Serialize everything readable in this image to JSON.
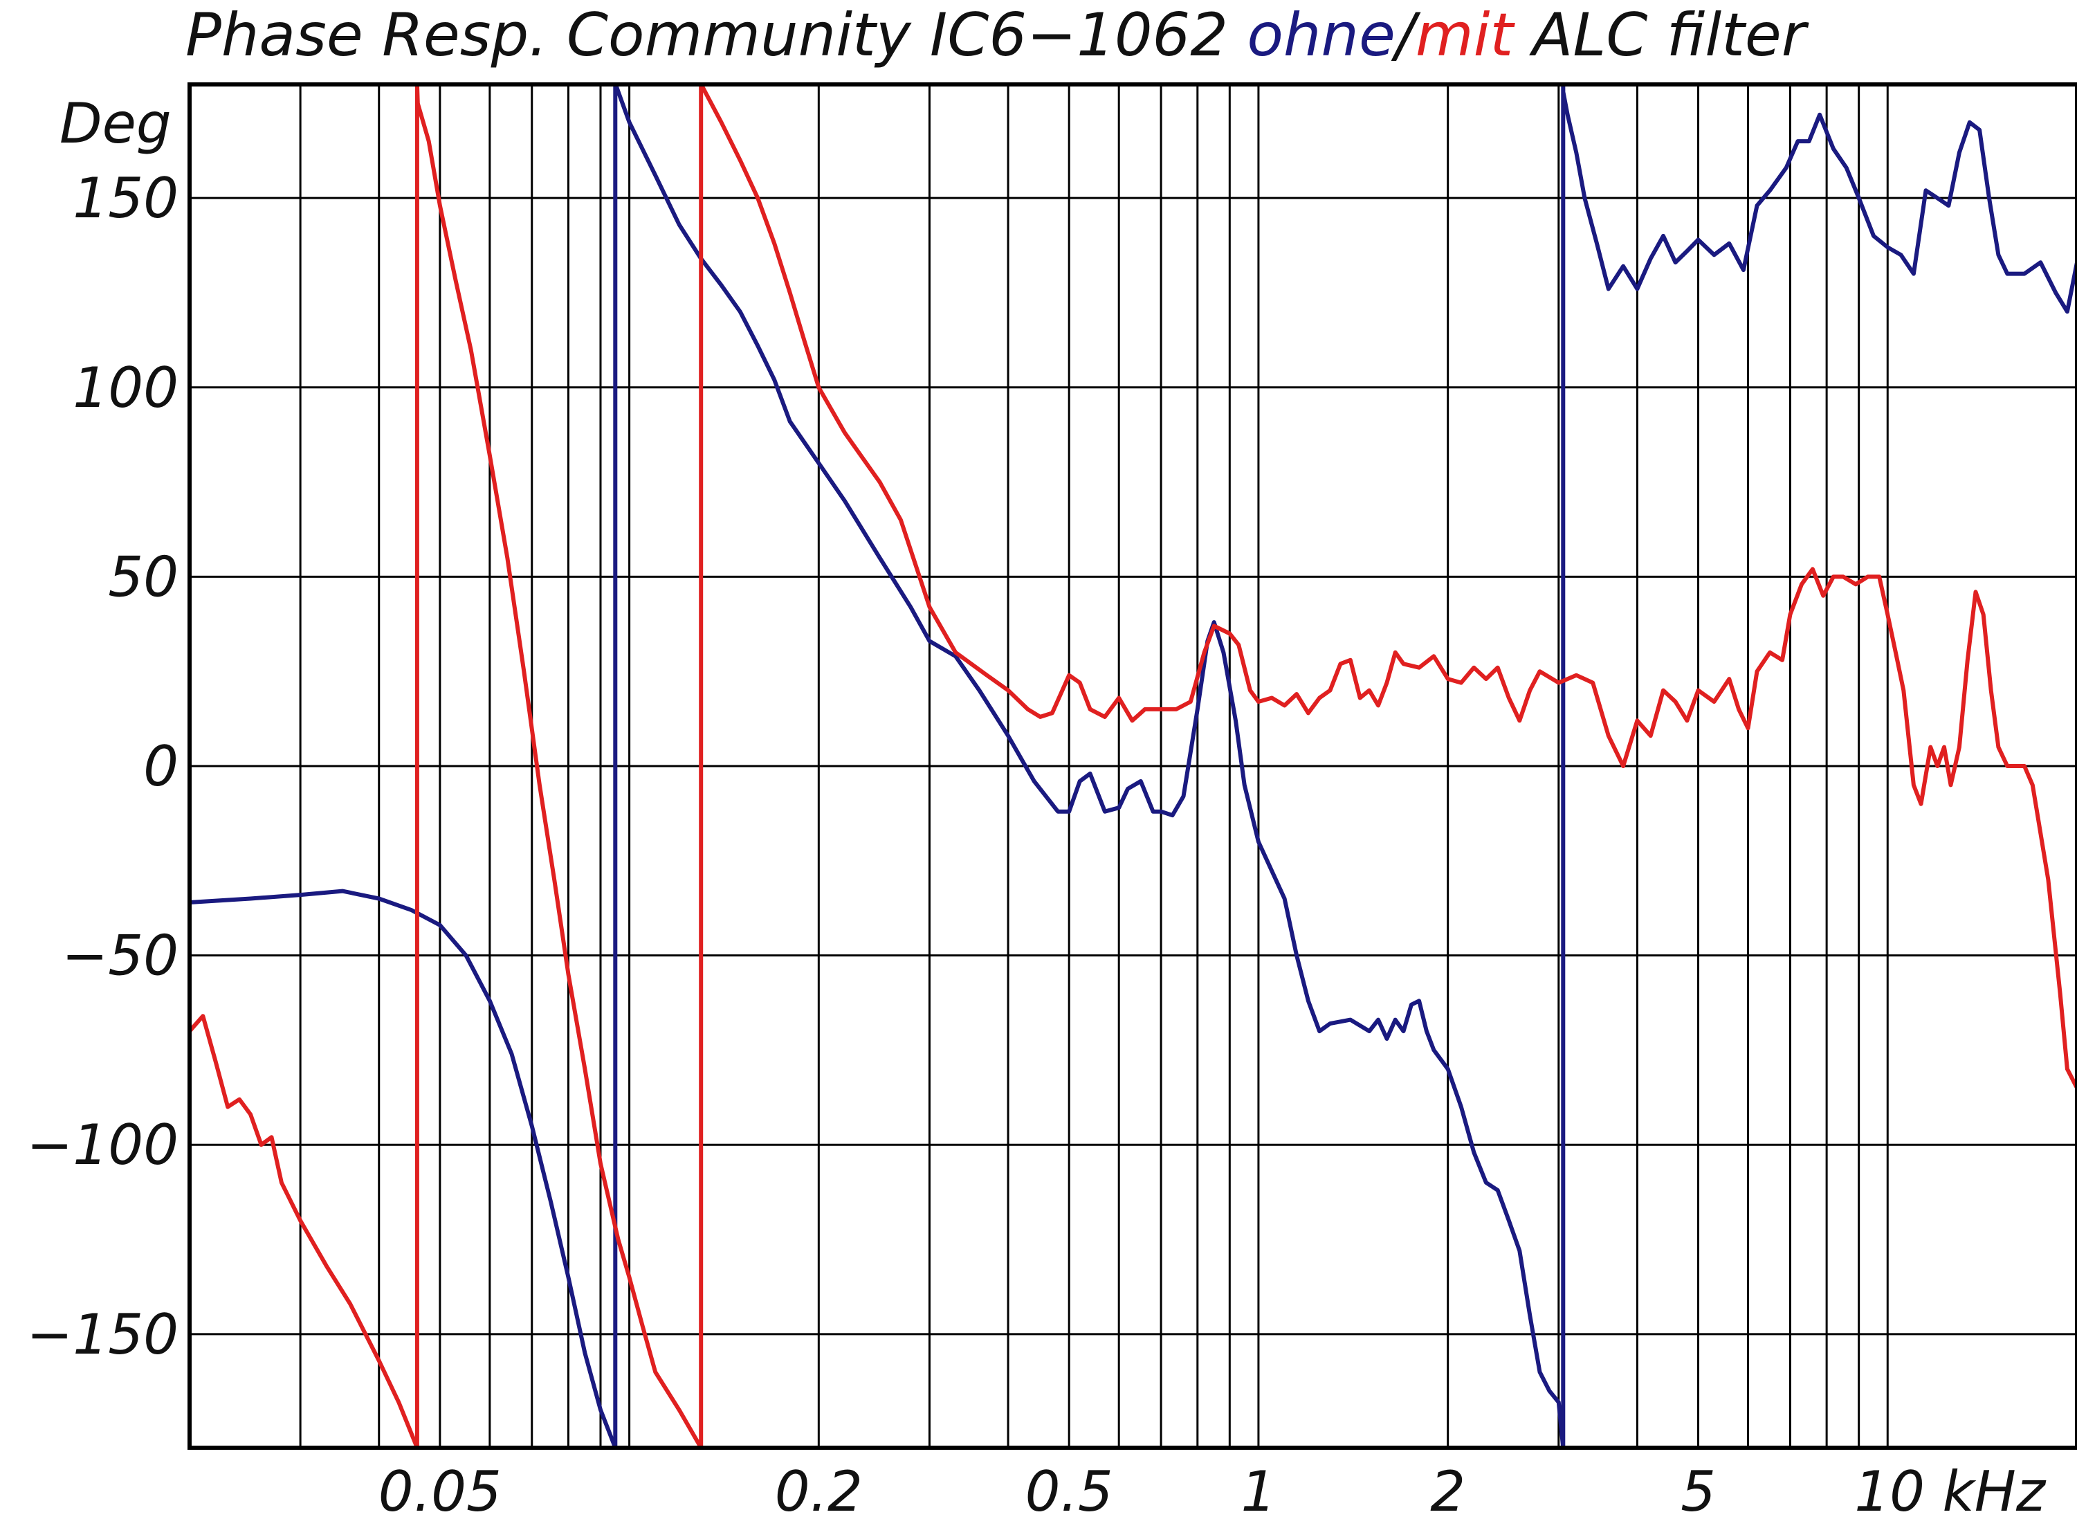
{
  "chart_data": {
    "type": "line",
    "title_parts": [
      {
        "text": "Phase Resp. Community IC6−1062 ",
        "color": "#111111"
      },
      {
        "text": "ohne",
        "color": "#1a1a80"
      },
      {
        "text": "/",
        "color": "#111111"
      },
      {
        "text": "mit",
        "color": "#e02020"
      },
      {
        "text": " ALC filter",
        "color": "#111111"
      }
    ],
    "ylabel": "Deg",
    "xlabel": "kHz",
    "x_scale": "log",
    "x_unit": "kHz",
    "xlim": [
      0.02,
      20
    ],
    "ylim": [
      -180,
      180
    ],
    "grid": true,
    "y_ticks": [
      {
        "value": 150,
        "label": "150"
      },
      {
        "value": 100,
        "label": "100"
      },
      {
        "value": 50,
        "label": "50"
      },
      {
        "value": 0,
        "label": "0"
      },
      {
        "value": -50,
        "label": "−50"
      },
      {
        "value": -100,
        "label": "−100"
      },
      {
        "value": -150,
        "label": "−150"
      }
    ],
    "x_tick_labels": [
      {
        "value": 0.05,
        "label": "0.05"
      },
      {
        "value": 0.2,
        "label": "0.2"
      },
      {
        "value": 0.5,
        "label": "0.5"
      },
      {
        "value": 1,
        "label": "1"
      },
      {
        "value": 2,
        "label": "2"
      },
      {
        "value": 5,
        "label": "5"
      },
      {
        "value": 10,
        "label": "10 kHz"
      }
    ],
    "x_gridlines": [
      0.03,
      0.04,
      0.05,
      0.06,
      0.07,
      0.08,
      0.09,
      0.1,
      0.2,
      0.3,
      0.4,
      0.5,
      0.6,
      0.7,
      0.8,
      0.9,
      1,
      2,
      3,
      4,
      5,
      6,
      7,
      8,
      9,
      10,
      20
    ],
    "y_gridlines": [
      150,
      100,
      50,
      0,
      -50,
      -100,
      -150
    ],
    "series": [
      {
        "name": "ohne",
        "color": "#1a1a80",
        "points": [
          [
            0.02,
            -36
          ],
          [
            0.025,
            -35
          ],
          [
            0.03,
            -34
          ],
          [
            0.035,
            -33
          ],
          [
            0.04,
            -35
          ],
          [
            0.045,
            -38
          ],
          [
            0.05,
            -42
          ],
          [
            0.055,
            -50
          ],
          [
            0.06,
            -62
          ],
          [
            0.065,
            -76
          ],
          [
            0.07,
            -95
          ],
          [
            0.075,
            -115
          ],
          [
            0.08,
            -135
          ],
          [
            0.085,
            -155
          ],
          [
            0.09,
            -170
          ],
          [
            0.095,
            -180
          ],
          [
            0.0951,
            180
          ],
          [
            0.1,
            170
          ],
          [
            0.11,
            156
          ],
          [
            0.12,
            143
          ],
          [
            0.13,
            134
          ],
          [
            0.14,
            127
          ],
          [
            0.15,
            120
          ],
          [
            0.16,
            111
          ],
          [
            0.17,
            102
          ],
          [
            0.18,
            91
          ],
          [
            0.2,
            80
          ],
          [
            0.22,
            70
          ],
          [
            0.25,
            55
          ],
          [
            0.28,
            42
          ],
          [
            0.3,
            33
          ],
          [
            0.33,
            29
          ],
          [
            0.36,
            20
          ],
          [
            0.4,
            8
          ],
          [
            0.44,
            -4
          ],
          [
            0.48,
            -12
          ],
          [
            0.5,
            -12
          ],
          [
            0.52,
            -4
          ],
          [
            0.54,
            -2
          ],
          [
            0.57,
            -12
          ],
          [
            0.6,
            -11
          ],
          [
            0.62,
            -6
          ],
          [
            0.65,
            -4
          ],
          [
            0.68,
            -12
          ],
          [
            0.7,
            -12
          ],
          [
            0.73,
            -13
          ],
          [
            0.76,
            -8
          ],
          [
            0.8,
            15
          ],
          [
            0.83,
            33
          ],
          [
            0.85,
            38
          ],
          [
            0.88,
            30
          ],
          [
            0.92,
            12
          ],
          [
            0.95,
            -5
          ],
          [
            1.0,
            -20
          ],
          [
            1.1,
            -35
          ],
          [
            1.15,
            -50
          ],
          [
            1.2,
            -62
          ],
          [
            1.25,
            -70
          ],
          [
            1.3,
            -68
          ],
          [
            1.4,
            -67
          ],
          [
            1.5,
            -70
          ],
          [
            1.55,
            -67
          ],
          [
            1.6,
            -72
          ],
          [
            1.65,
            -67
          ],
          [
            1.7,
            -70
          ],
          [
            1.75,
            -63
          ],
          [
            1.8,
            -62
          ],
          [
            1.85,
            -70
          ],
          [
            1.9,
            -75
          ],
          [
            2.0,
            -80
          ],
          [
            2.1,
            -90
          ],
          [
            2.2,
            -102
          ],
          [
            2.3,
            -110
          ],
          [
            2.4,
            -112
          ],
          [
            2.5,
            -120
          ],
          [
            2.6,
            -128
          ],
          [
            2.7,
            -145
          ],
          [
            2.8,
            -160
          ],
          [
            2.9,
            -165
          ],
          [
            3.0,
            -168
          ],
          [
            3.05,
            -180
          ],
          [
            3.051,
            178
          ],
          [
            3.1,
            172
          ],
          [
            3.2,
            162
          ],
          [
            3.3,
            150
          ],
          [
            3.45,
            138
          ],
          [
            3.6,
            126
          ],
          [
            3.8,
            132
          ],
          [
            4.0,
            126
          ],
          [
            4.2,
            134
          ],
          [
            4.4,
            140
          ],
          [
            4.6,
            133
          ],
          [
            4.8,
            136
          ],
          [
            5.0,
            139
          ],
          [
            5.3,
            135
          ],
          [
            5.6,
            138
          ],
          [
            5.9,
            131
          ],
          [
            6.2,
            148
          ],
          [
            6.5,
            152
          ],
          [
            6.9,
            158
          ],
          [
            7.2,
            165
          ],
          [
            7.5,
            165
          ],
          [
            7.8,
            172
          ],
          [
            8.2,
            163
          ],
          [
            8.6,
            158
          ],
          [
            9.0,
            150
          ],
          [
            9.5,
            140
          ],
          [
            10.0,
            137
          ],
          [
            10.5,
            135
          ],
          [
            11.0,
            130
          ],
          [
            11.5,
            152
          ],
          [
            12.0,
            150
          ],
          [
            12.5,
            148
          ],
          [
            13.0,
            162
          ],
          [
            13.5,
            170
          ],
          [
            14.0,
            168
          ],
          [
            14.5,
            150
          ],
          [
            15.0,
            135
          ],
          [
            15.5,
            130
          ],
          [
            16.5,
            130
          ],
          [
            17.5,
            133
          ],
          [
            18.5,
            125
          ],
          [
            19.3,
            120
          ],
          [
            20.0,
            133
          ]
        ]
      },
      {
        "name": "mit",
        "color": "#e02020",
        "points": [
          [
            0.02,
            -70
          ],
          [
            0.021,
            -66
          ],
          [
            0.022,
            -78
          ],
          [
            0.023,
            -90
          ],
          [
            0.024,
            -88
          ],
          [
            0.025,
            -92
          ],
          [
            0.026,
            -100
          ],
          [
            0.027,
            -98
          ],
          [
            0.028,
            -110
          ],
          [
            0.03,
            -120
          ],
          [
            0.033,
            -132
          ],
          [
            0.036,
            -142
          ],
          [
            0.04,
            -157
          ],
          [
            0.043,
            -168
          ],
          [
            0.046,
            -180
          ],
          [
            0.0461,
            175
          ],
          [
            0.048,
            165
          ],
          [
            0.05,
            148
          ],
          [
            0.053,
            128
          ],
          [
            0.056,
            110
          ],
          [
            0.06,
            82
          ],
          [
            0.064,
            55
          ],
          [
            0.068,
            25
          ],
          [
            0.072,
            -5
          ],
          [
            0.076,
            -30
          ],
          [
            0.08,
            -55
          ],
          [
            0.085,
            -80
          ],
          [
            0.09,
            -105
          ],
          [
            0.096,
            -125
          ],
          [
            0.1,
            -135
          ],
          [
            0.105,
            -148
          ],
          [
            0.11,
            -160
          ],
          [
            0.12,
            -170
          ],
          [
            0.13,
            -180
          ],
          [
            0.1301,
            180
          ],
          [
            0.14,
            170
          ],
          [
            0.15,
            160
          ],
          [
            0.16,
            150
          ],
          [
            0.17,
            138
          ],
          [
            0.18,
            125
          ],
          [
            0.19,
            112
          ],
          [
            0.2,
            100
          ],
          [
            0.22,
            88
          ],
          [
            0.25,
            75
          ],
          [
            0.27,
            65
          ],
          [
            0.3,
            42
          ],
          [
            0.33,
            30
          ],
          [
            0.37,
            24
          ],
          [
            0.4,
            20
          ],
          [
            0.43,
            15
          ],
          [
            0.45,
            13
          ],
          [
            0.47,
            14
          ],
          [
            0.5,
            24
          ],
          [
            0.52,
            22
          ],
          [
            0.54,
            15
          ],
          [
            0.57,
            13
          ],
          [
            0.6,
            18
          ],
          [
            0.63,
            12
          ],
          [
            0.66,
            15
          ],
          [
            0.7,
            15
          ],
          [
            0.74,
            15
          ],
          [
            0.78,
            17
          ],
          [
            0.82,
            30
          ],
          [
            0.85,
            37
          ],
          [
            0.9,
            35
          ],
          [
            0.93,
            32
          ],
          [
            0.97,
            20
          ],
          [
            1.0,
            17
          ],
          [
            1.05,
            18
          ],
          [
            1.1,
            16
          ],
          [
            1.15,
            19
          ],
          [
            1.2,
            14
          ],
          [
            1.25,
            18
          ],
          [
            1.3,
            20
          ],
          [
            1.35,
            27
          ],
          [
            1.4,
            28
          ],
          [
            1.45,
            18
          ],
          [
            1.5,
            20
          ],
          [
            1.55,
            16
          ],
          [
            1.6,
            22
          ],
          [
            1.65,
            30
          ],
          [
            1.7,
            27
          ],
          [
            1.8,
            26
          ],
          [
            1.9,
            29
          ],
          [
            2.0,
            23
          ],
          [
            2.1,
            22
          ],
          [
            2.2,
            26
          ],
          [
            2.3,
            23
          ],
          [
            2.4,
            26
          ],
          [
            2.5,
            18
          ],
          [
            2.6,
            12
          ],
          [
            2.7,
            20
          ],
          [
            2.8,
            25
          ],
          [
            3.0,
            22
          ],
          [
            3.2,
            24
          ],
          [
            3.4,
            22
          ],
          [
            3.6,
            8
          ],
          [
            3.8,
            0
          ],
          [
            4.0,
            12
          ],
          [
            4.2,
            8
          ],
          [
            4.4,
            20
          ],
          [
            4.6,
            17
          ],
          [
            4.8,
            12
          ],
          [
            5.0,
            20
          ],
          [
            5.3,
            17
          ],
          [
            5.6,
            23
          ],
          [
            5.8,
            15
          ],
          [
            6.0,
            10
          ],
          [
            6.2,
            25
          ],
          [
            6.5,
            30
          ],
          [
            6.8,
            28
          ],
          [
            7.0,
            40
          ],
          [
            7.3,
            48
          ],
          [
            7.6,
            52
          ],
          [
            7.9,
            45
          ],
          [
            8.2,
            50
          ],
          [
            8.5,
            50
          ],
          [
            8.9,
            48
          ],
          [
            9.3,
            50
          ],
          [
            9.7,
            50
          ],
          [
            10.0,
            40
          ],
          [
            10.3,
            30
          ],
          [
            10.6,
            20
          ],
          [
            11.0,
            -5
          ],
          [
            11.3,
            -10
          ],
          [
            11.7,
            5
          ],
          [
            12.0,
            0
          ],
          [
            12.3,
            5
          ],
          [
            12.6,
            -5
          ],
          [
            13.0,
            5
          ],
          [
            13.4,
            28
          ],
          [
            13.8,
            46
          ],
          [
            14.2,
            40
          ],
          [
            14.6,
            20
          ],
          [
            15.0,
            5
          ],
          [
            15.5,
            0
          ],
          [
            16.5,
            0
          ],
          [
            17.0,
            -5
          ],
          [
            18.0,
            -30
          ],
          [
            18.8,
            -60
          ],
          [
            19.3,
            -80
          ],
          [
            20.0,
            -85
          ]
        ]
      }
    ]
  }
}
